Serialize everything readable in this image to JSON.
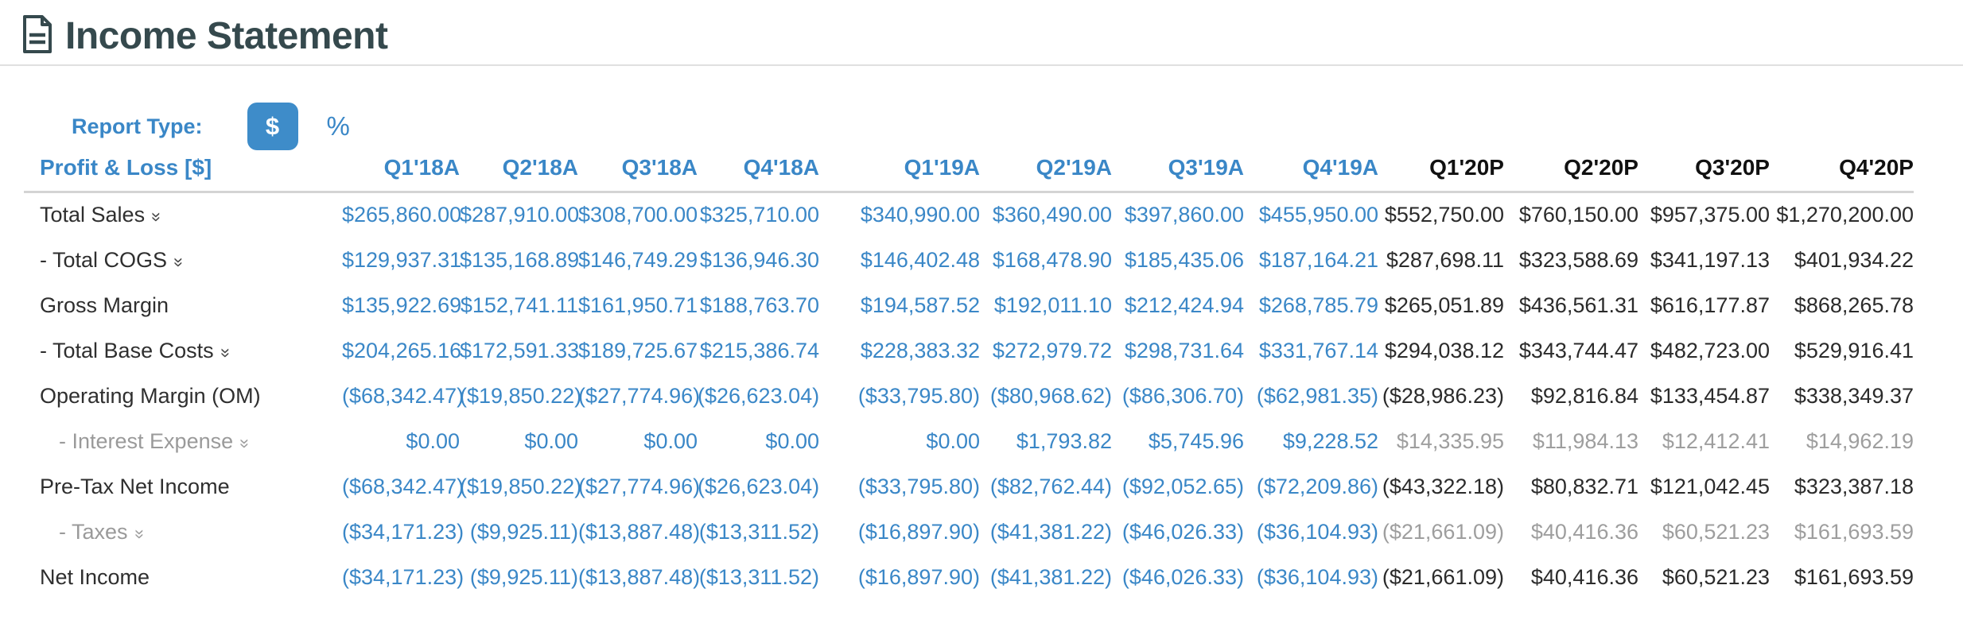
{
  "page": {
    "title": "Income Statement"
  },
  "controls": {
    "label": "Report Type:",
    "options": [
      {
        "label": "$",
        "active": true
      },
      {
        "label": "%",
        "active": false
      }
    ]
  },
  "table": {
    "corner": "Profit & Loss [$]",
    "columns": [
      {
        "label": "Q1'18A",
        "type": "actual"
      },
      {
        "label": "Q2'18A",
        "type": "actual"
      },
      {
        "label": "Q3'18A",
        "type": "actual"
      },
      {
        "label": "Q4'18A",
        "type": "actual"
      },
      {
        "label": "Q1'19A",
        "type": "actual"
      },
      {
        "label": "Q2'19A",
        "type": "actual"
      },
      {
        "label": "Q3'19A",
        "type": "actual"
      },
      {
        "label": "Q4'19A",
        "type": "actual"
      },
      {
        "label": "Q1'20P",
        "type": "projected"
      },
      {
        "label": "Q2'20P",
        "type": "projected"
      },
      {
        "label": "Q3'20P",
        "type": "projected"
      },
      {
        "label": "Q4'20P",
        "type": "projected"
      }
    ],
    "rows": [
      {
        "label": "Total Sales",
        "expandable": true,
        "indent": false,
        "muted": false,
        "values": [
          "$265,860.00",
          "$287,910.00",
          "$308,700.00",
          "$325,710.00",
          "$340,990.00",
          "$360,490.00",
          "$397,860.00",
          "$455,950.00",
          "$552,750.00",
          "$760,150.00",
          "$957,375.00",
          "$1,270,200.00"
        ]
      },
      {
        "label": "- Total COGS",
        "expandable": true,
        "indent": false,
        "muted": false,
        "values": [
          "$129,937.31",
          "$135,168.89",
          "$146,749.29",
          "$136,946.30",
          "$146,402.48",
          "$168,478.90",
          "$185,435.06",
          "$187,164.21",
          "$287,698.11",
          "$323,588.69",
          "$341,197.13",
          "$401,934.22"
        ]
      },
      {
        "label": "Gross Margin",
        "expandable": false,
        "indent": false,
        "muted": false,
        "values": [
          "$135,922.69",
          "$152,741.11",
          "$161,950.71",
          "$188,763.70",
          "$194,587.52",
          "$192,011.10",
          "$212,424.94",
          "$268,785.79",
          "$265,051.89",
          "$436,561.31",
          "$616,177.87",
          "$868,265.78"
        ]
      },
      {
        "label": "- Total Base Costs",
        "expandable": true,
        "indent": false,
        "muted": false,
        "values": [
          "$204,265.16",
          "$172,591.33",
          "$189,725.67",
          "$215,386.74",
          "$228,383.32",
          "$272,979.72",
          "$298,731.64",
          "$331,767.14",
          "$294,038.12",
          "$343,744.47",
          "$482,723.00",
          "$529,916.41"
        ]
      },
      {
        "label": "Operating Margin (OM)",
        "expandable": false,
        "indent": false,
        "muted": false,
        "values": [
          "($68,342.47)",
          "($19,850.22)",
          "($27,774.96)",
          "($26,623.04)",
          "($33,795.80)",
          "($80,968.62)",
          "($86,306.70)",
          "($62,981.35)",
          "($28,986.23)",
          "$92,816.84",
          "$133,454.87",
          "$338,349.37"
        ]
      },
      {
        "label": "- Interest Expense",
        "expandable": true,
        "indent": true,
        "muted": true,
        "values": [
          "$0.00",
          "$0.00",
          "$0.00",
          "$0.00",
          "$0.00",
          "$1,793.82",
          "$5,745.96",
          "$9,228.52",
          "$14,335.95",
          "$11,984.13",
          "$12,412.41",
          "$14,962.19"
        ]
      },
      {
        "label": "Pre-Tax Net Income",
        "expandable": false,
        "indent": false,
        "muted": false,
        "values": [
          "($68,342.47)",
          "($19,850.22)",
          "($27,774.96)",
          "($26,623.04)",
          "($33,795.80)",
          "($82,762.44)",
          "($92,052.65)",
          "($72,209.86)",
          "($43,322.18)",
          "$80,832.71",
          "$121,042.45",
          "$323,387.18"
        ]
      },
      {
        "label": "- Taxes",
        "expandable": true,
        "indent": true,
        "muted": true,
        "values": [
          "($34,171.23)",
          "($9,925.11)",
          "($13,887.48)",
          "($13,311.52)",
          "($16,897.90)",
          "($41,381.22)",
          "($46,026.33)",
          "($36,104.93)",
          "($21,661.09)",
          "$40,416.36",
          "$60,521.23",
          "$161,693.59"
        ]
      },
      {
        "label": "Net Income",
        "expandable": false,
        "indent": false,
        "muted": false,
        "values": [
          "($34,171.23)",
          "($9,925.11)",
          "($13,887.48)",
          "($13,311.52)",
          "($16,897.90)",
          "($41,381.22)",
          "($46,026.33)",
          "($36,104.93)",
          "($21,661.09)",
          "$40,416.36",
          "$60,521.23",
          "$161,693.59"
        ]
      }
    ]
  },
  "icons": {
    "title_icon": "document-icon",
    "row_expand_icon": "double-chevron-down-icon",
    "expand_glyph": "»"
  },
  "colors": {
    "accent_blue": "#3a87c7",
    "button_blue": "#3e8cc9",
    "title_slate": "#35494d",
    "projected_dark": "#2b2b2b",
    "muted_gray": "#9e9e9e"
  }
}
